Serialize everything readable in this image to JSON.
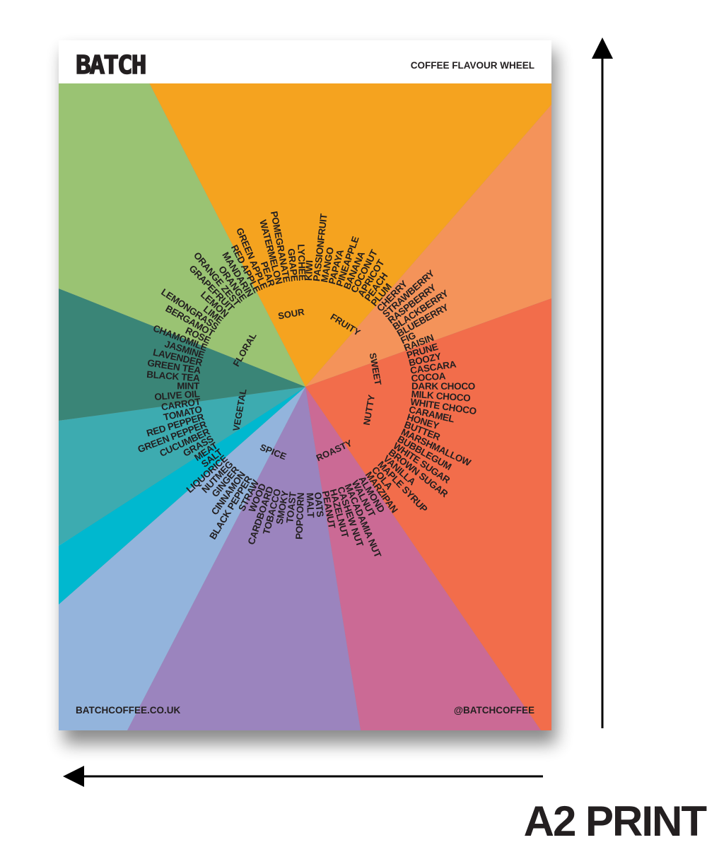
{
  "header": {
    "brand": "BATCH",
    "title": "COFFEE FLAVOUR WHEEL"
  },
  "wheel": {
    "categories": [
      "SOUR",
      "FRUITY",
      "SWEET",
      "NUTTY",
      "ROASTY",
      "SPICE",
      "VEGETAL",
      "FLORAL"
    ],
    "flavours": [
      "CHERRY",
      "STRAWBERRY",
      "RASPBERRY",
      "BLACKBERRY",
      "BLUEBERRY",
      "FIG",
      "RAISIN",
      "PRUNE",
      "BOOZY",
      "CASCARA",
      "COCOA",
      "DARK CHOCO",
      "MILK CHOCO",
      "WHITE CHOCO",
      "CARAMEL",
      "HONEY",
      "BUTTER",
      "MARSHMALLOW",
      "BUBBLEGUM",
      "WHITE SUGAR",
      "BROWN SUGAR",
      "VANILLA",
      "MAPLE SYRUP",
      "COLA",
      "MARZIPAN",
      "ALMOND",
      "WALNUT",
      "MACADAMIA NUT",
      "CASHEW NUT",
      "HAZELNUT",
      "PEANUT",
      "OATS",
      "MALT",
      "POPCORN",
      "TOAST",
      "SMOKY",
      "TOBACCO",
      "CARDBOARD",
      "WOOD",
      "STRAW",
      "BLACK PEPPER",
      "CINNAMON",
      "GINGER",
      "NUTMEG",
      "LIQUORICE",
      "SALT",
      "MEAT",
      "GRASS",
      "CUCUMBER",
      "GREEN PEPPER",
      "RED PEPPER",
      "TOMATO",
      "CARROT",
      "OLIVE OIL",
      "MINT",
      "BLACK TEA",
      "GREEN TEA",
      "LAVENDER",
      "JASMINE",
      "CHAMOMILE",
      "ROSE",
      "BERGAMOT",
      "LEMONGRASS",
      "LIME",
      "LEMON",
      "GRAPEFRUIT",
      "ORANGE ZEST",
      "ORANGE",
      "MANDARIN",
      "RED APPLE",
      "GREEN APPLE",
      "PEAR",
      "WATERMELON",
      "POMEGRANATE",
      "GRAPE",
      "LYCHEE",
      "KIWI",
      "PASSIONFRUIT",
      "MANGO",
      "PAPAYA",
      "PINEAPPLE",
      "BANANA",
      "COCONUT",
      "APRICOT",
      "PEACH",
      "PLUM"
    ]
  },
  "footer": {
    "website": "BATCHCOFFEE.CO.UK",
    "handle": "@BATCHCOFFEE"
  },
  "print_size": "A2 PRINT"
}
